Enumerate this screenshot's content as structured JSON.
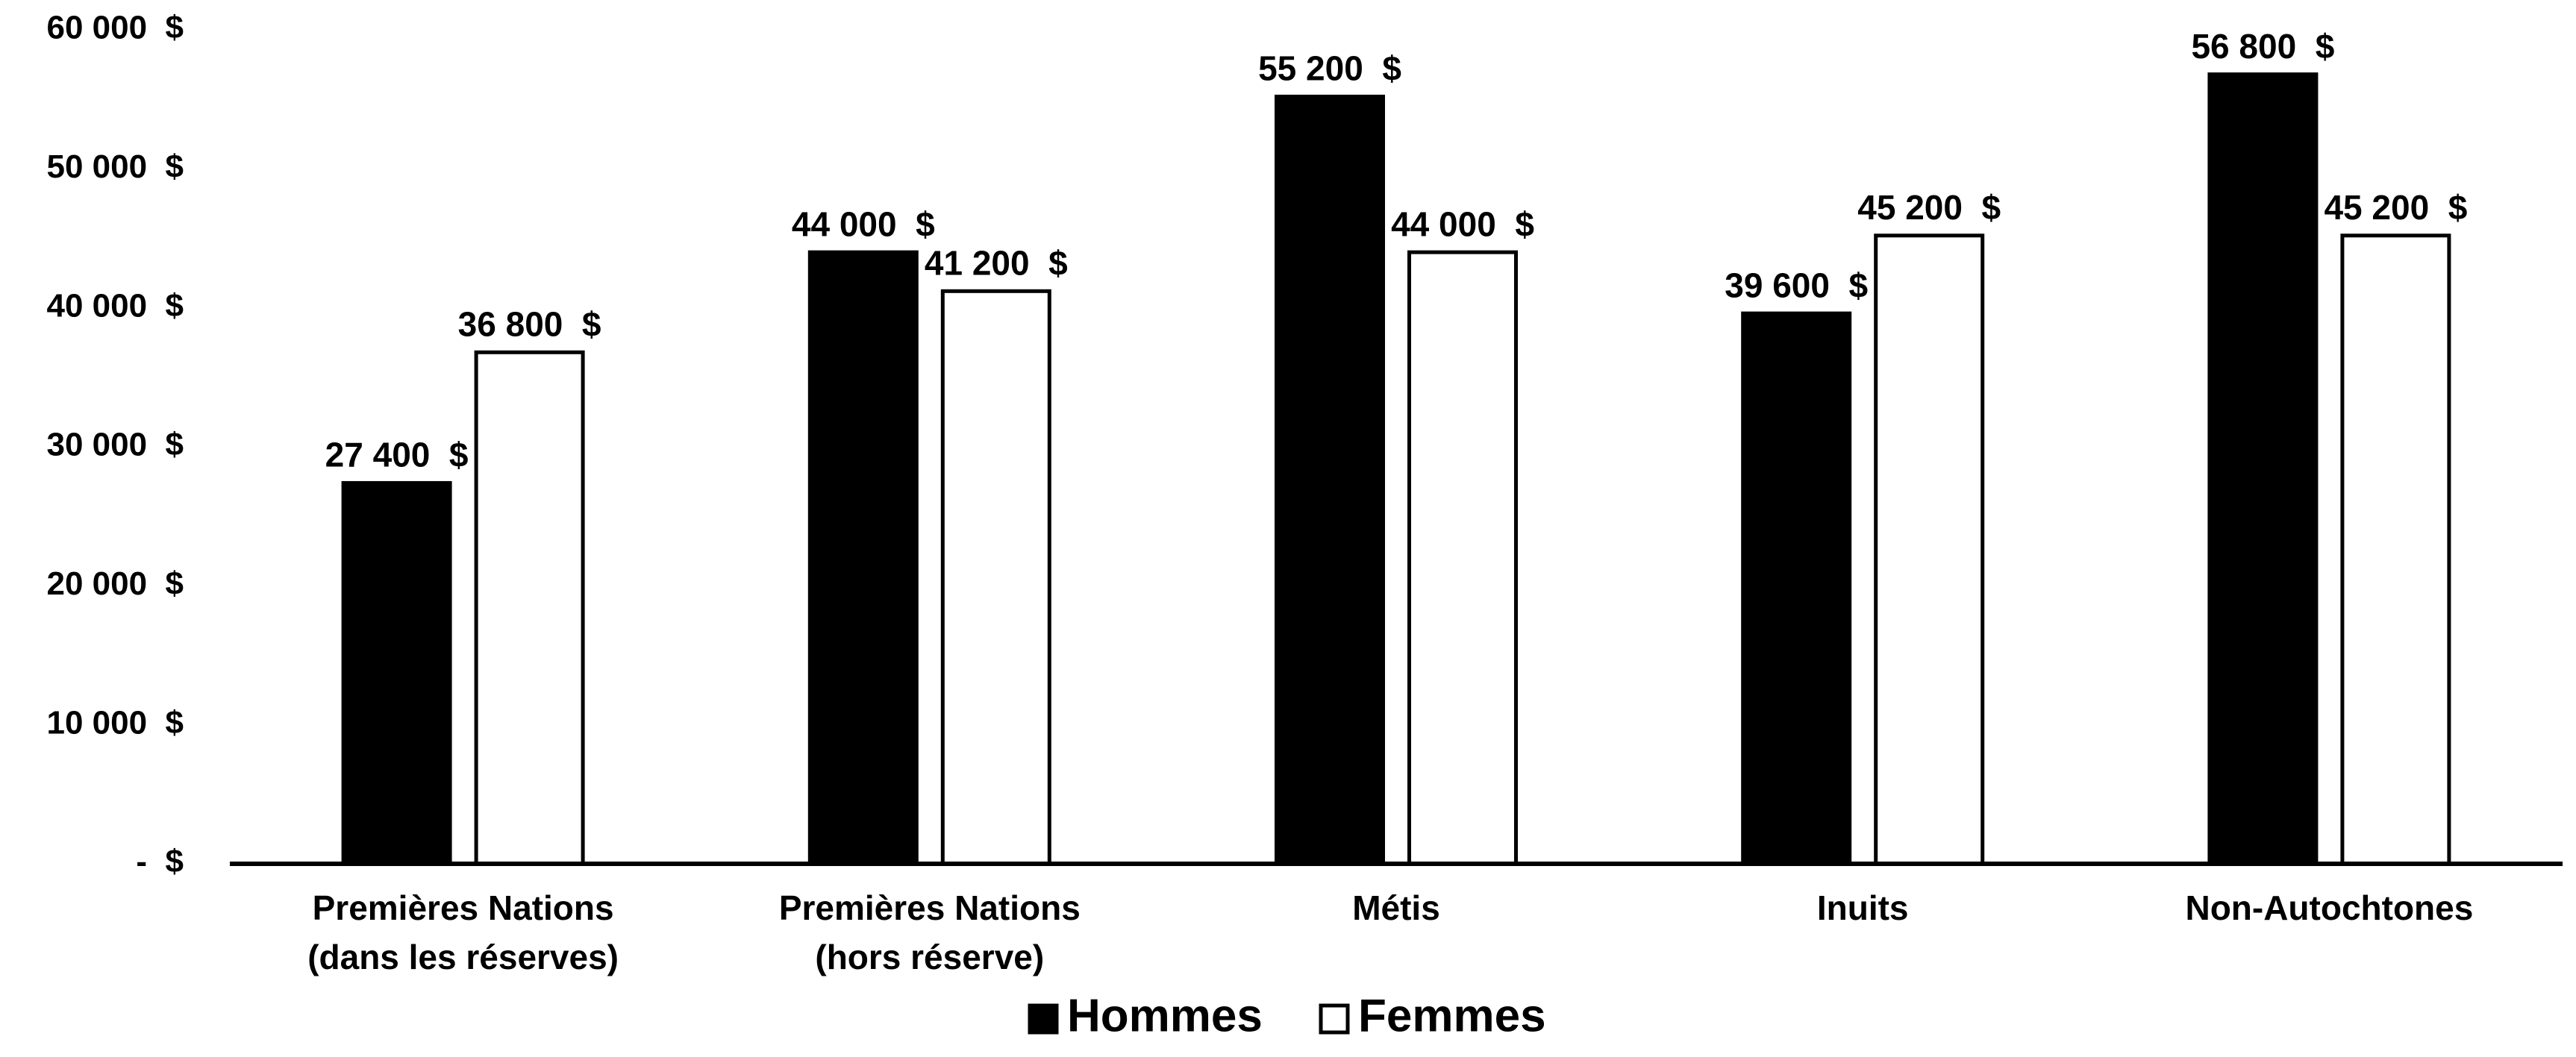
{
  "chart_data": {
    "type": "bar",
    "categories": [
      [
        "Premières Nations",
        "(dans les réserves)"
      ],
      [
        "Premières Nations",
        "(hors réserve)"
      ],
      [
        "Métis"
      ],
      [
        "Inuits"
      ],
      [
        "Non-Autochtones"
      ]
    ],
    "series": [
      {
        "name": "Hommes",
        "color": "#000000",
        "values": [
          27400,
          44000,
          55200,
          39600,
          56800
        ],
        "value_labels": [
          "27 400  $",
          "44 000  $",
          "55 200  $",
          "39 600  $",
          "56 800  $"
        ]
      },
      {
        "name": "Femmes",
        "color": "#ffffff",
        "values": [
          36800,
          41200,
          44000,
          45200,
          45200
        ],
        "value_labels": [
          "36 800  $",
          "41 200  $",
          "44 000  $",
          "45 200  $",
          "45 200  $"
        ]
      }
    ],
    "ylim": [
      0,
      60000
    ],
    "yticks": [
      {
        "value": 0,
        "label": "-  $"
      },
      {
        "value": 10000,
        "label": "10 000  $"
      },
      {
        "value": 20000,
        "label": "20 000  $"
      },
      {
        "value": 30000,
        "label": "30 000  $"
      },
      {
        "value": 40000,
        "label": "40 000  $"
      },
      {
        "value": 50000,
        "label": "50 000  $"
      },
      {
        "value": 60000,
        "label": "60 000  $"
      }
    ],
    "grid": false,
    "legend": "bottom"
  }
}
